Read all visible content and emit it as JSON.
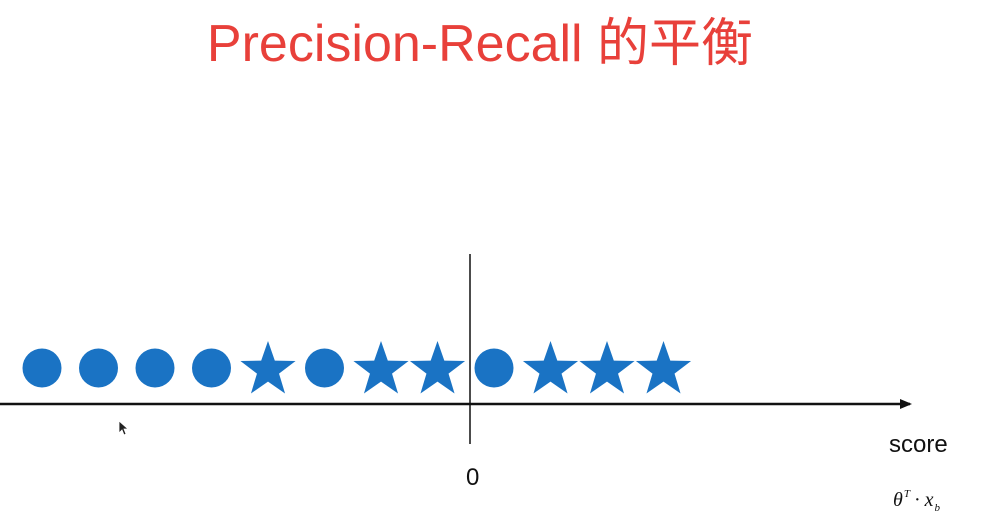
{
  "title": "Precision-Recall 的平衡",
  "axis": {
    "label": "score",
    "zero_label": "0",
    "formula": {
      "base": "θ",
      "sup": "T",
      "dot": "·",
      "var": "x",
      "sub": "b"
    }
  },
  "colors": {
    "title": "#e8403a",
    "marker": "#1a73c4",
    "axis": "#111111"
  },
  "samples": [
    {
      "shape": "circle-icon"
    },
    {
      "shape": "circle-icon"
    },
    {
      "shape": "circle-icon"
    },
    {
      "shape": "circle-icon"
    },
    {
      "shape": "star-icon"
    },
    {
      "shape": "circle-icon"
    },
    {
      "shape": "star-icon"
    },
    {
      "shape": "star-icon"
    },
    {
      "shape": "circle-icon"
    },
    {
      "shape": "star-icon"
    },
    {
      "shape": "star-icon"
    },
    {
      "shape": "star-icon"
    }
  ]
}
